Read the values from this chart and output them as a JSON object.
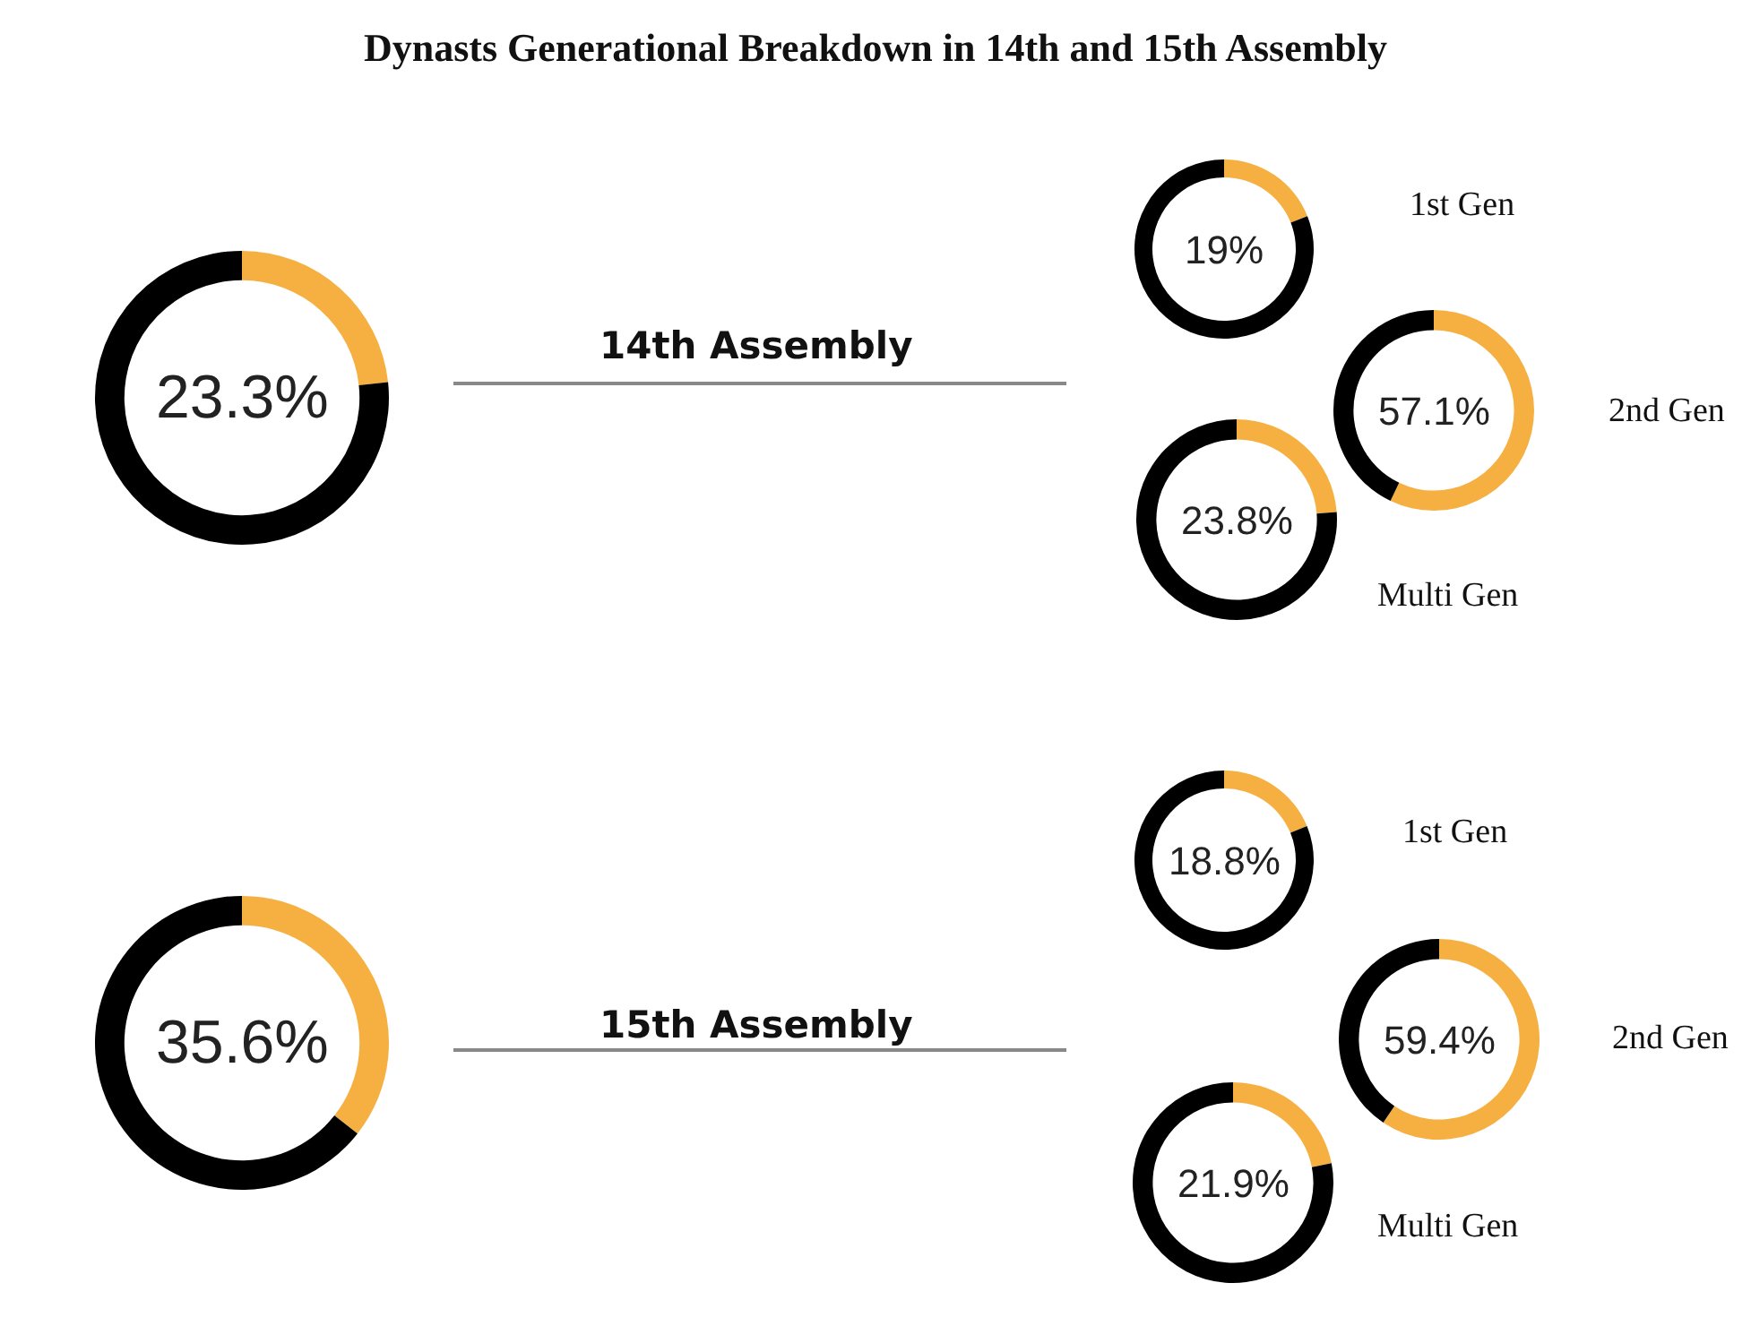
{
  "chart_data": [
    {
      "type": "donut",
      "title": "Dynasts Generational Breakdown in 14th and 15th Assembly",
      "categories": [
        null,
        null
      ],
      "values": [
        23.3,
        76.7
      ],
      "colors": [
        "#f5b041",
        "#000000"
      ],
      "annotations": [
        "23.3%",
        "14th Assembly"
      ],
      "legend": false
    },
    {
      "type": "donut",
      "categories": [
        null,
        null
      ],
      "values": [
        19,
        81
      ],
      "colors": [
        "#f5b041",
        "#000000"
      ],
      "annotations": [
        "19%",
        "1st Gen"
      ],
      "legend": false
    },
    {
      "type": "donut",
      "categories": [
        null,
        null
      ],
      "values": [
        57.1,
        42.9
      ],
      "colors": [
        "#f5b041",
        "#000000"
      ],
      "annotations": [
        "57.1%",
        "2nd Gen"
      ],
      "legend": false
    },
    {
      "type": "donut",
      "categories": [
        null,
        null
      ],
      "values": [
        23.8,
        76.2
      ],
      "colors": [
        "#f5b041",
        "#000000"
      ],
      "annotations": [
        "23.8%",
        "Multi Gen"
      ],
      "legend": false
    },
    {
      "type": "donut",
      "categories": [
        null,
        null
      ],
      "values": [
        35.6,
        64.4
      ],
      "colors": [
        "#f5b041",
        "#000000"
      ],
      "annotations": [
        "35.6%",
        "15th Assembly"
      ],
      "legend": false
    },
    {
      "type": "donut",
      "categories": [
        null,
        null
      ],
      "values": [
        18.8,
        81.2
      ],
      "colors": [
        "#f5b041",
        "#000000"
      ],
      "annotations": [
        "18.8%",
        "1st Gen"
      ],
      "legend": false
    },
    {
      "type": "donut",
      "categories": [
        null,
        null
      ],
      "values": [
        59.4,
        40.6
      ],
      "colors": [
        "#f5b041",
        "#000000"
      ],
      "annotations": [
        "59.4%",
        "2nd Gen"
      ],
      "legend": false
    },
    {
      "type": "donut",
      "categories": [
        null,
        null
      ],
      "values": [
        21.9,
        78.1
      ],
      "colors": [
        "#f5b041",
        "#000000"
      ],
      "annotations": [
        "21.9%",
        "Multi Gen"
      ],
      "legend": false
    }
  ]
}
